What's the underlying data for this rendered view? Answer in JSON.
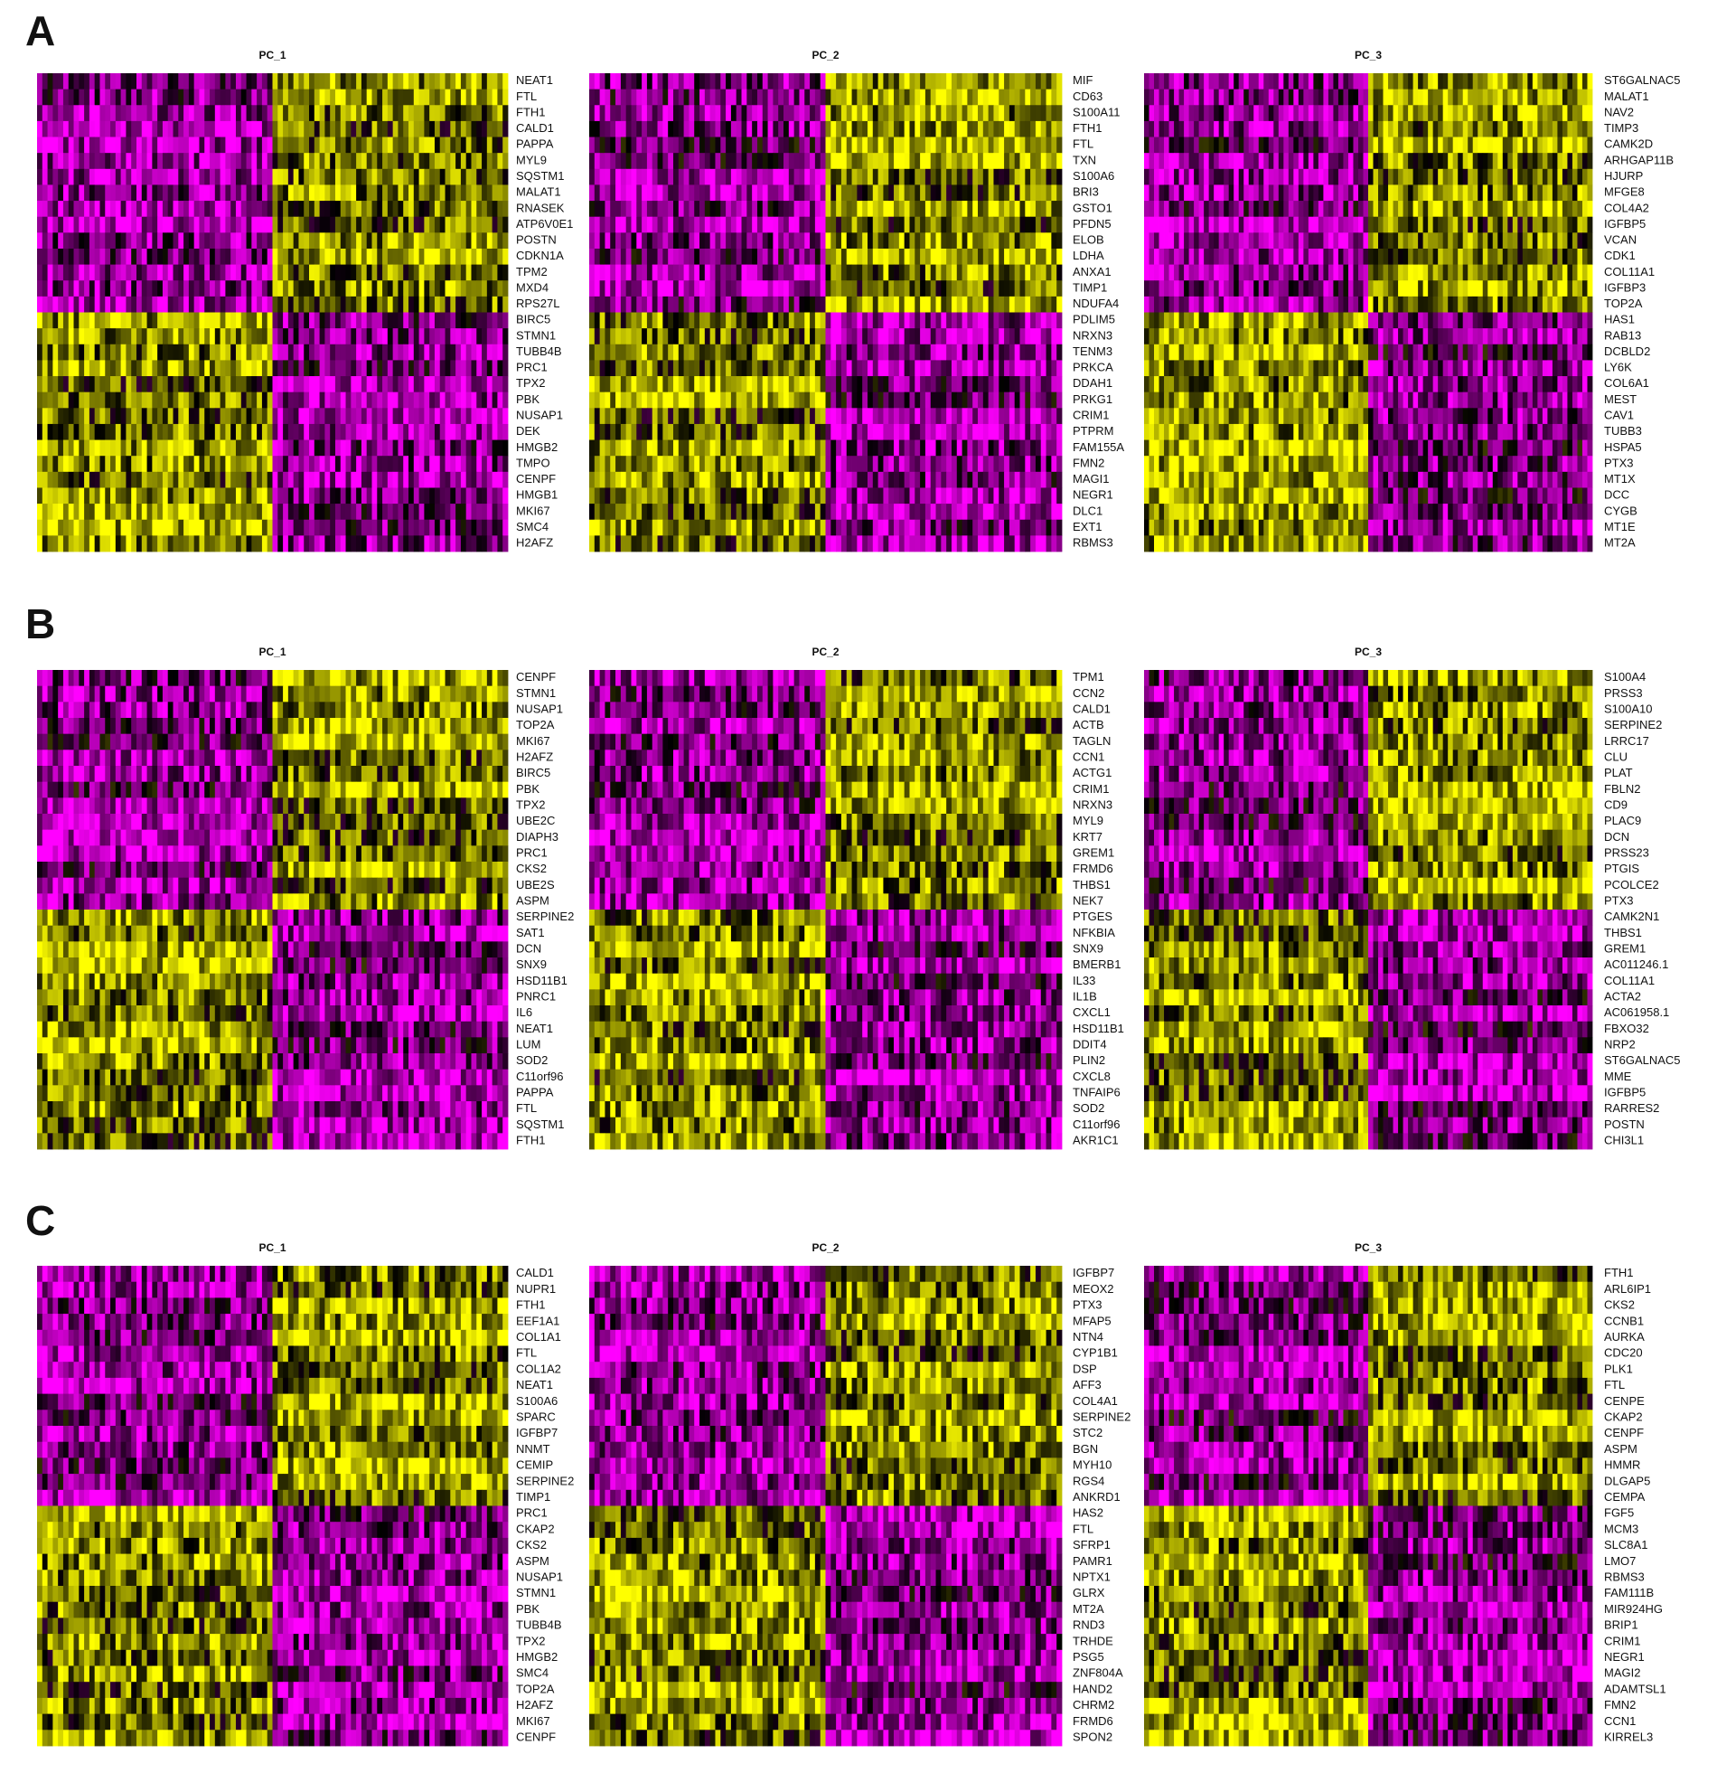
{
  "panels": [
    {
      "letter": "A",
      "heatmaps": [
        {
          "title": "PC_1",
          "genes": [
            "NEAT1",
            "FTL",
            "FTH1",
            "CALD1",
            "PAPPA",
            "MYL9",
            "SQSTM1",
            "MALAT1",
            "RNASEK",
            "ATP6V0E1",
            "POSTN",
            "CDKN1A",
            "TPM2",
            "MXD4",
            "RPS27L",
            "BIRC5",
            "STMN1",
            "TUBB4B",
            "PRC1",
            "TPX2",
            "PBK",
            "NUSAP1",
            "DEK",
            "HMGB2",
            "TMPO",
            "CENPF",
            "HMGB1",
            "MKI67",
            "SMC4",
            "H2AFZ"
          ]
        },
        {
          "title": "PC_2",
          "genes": [
            "MIF",
            "CD63",
            "S100A11",
            "FTH1",
            "FTL",
            "TXN",
            "S100A6",
            "BRI3",
            "GSTO1",
            "PFDN5",
            "ELOB",
            "LDHA",
            "ANXA1",
            "TIMP1",
            "NDUFA4",
            "PDLIM5",
            "NRXN3",
            "TENM3",
            "PRKCA",
            "DDAH1",
            "PRKG1",
            "CRIM1",
            "PTPRM",
            "FAM155A",
            "FMN2",
            "MAGI1",
            "NEGR1",
            "DLC1",
            "EXT1",
            "RBMS3"
          ]
        },
        {
          "title": "PC_3",
          "genes": [
            "ST6GALNAC5",
            "MALAT1",
            "NAV2",
            "TIMP3",
            "CAMK2D",
            "ARHGAP11B",
            "HJURP",
            "MFGE8",
            "COL4A2",
            "IGFBP5",
            "VCAN",
            "CDK1",
            "COL11A1",
            "IGFBP3",
            "TOP2A",
            "HAS1",
            "RAB13",
            "DCBLD2",
            "LY6K",
            "COL6A1",
            "MEST",
            "CAV1",
            "TUBB3",
            "HSPA5",
            "PTX3",
            "MT1X",
            "DCC",
            "CYGB",
            "MT1E",
            "MT2A"
          ]
        }
      ]
    },
    {
      "letter": "B",
      "heatmaps": [
        {
          "title": "PC_1",
          "genes": [
            "CENPF",
            "STMN1",
            "NUSAP1",
            "TOP2A",
            "MKI67",
            "H2AFZ",
            "BIRC5",
            "PBK",
            "TPX2",
            "UBE2C",
            "DIAPH3",
            "PRC1",
            "CKS2",
            "UBE2S",
            "ASPM",
            "SERPINE2",
            "SAT1",
            "DCN",
            "SNX9",
            "HSD11B1",
            "PNRC1",
            "IL6",
            "NEAT1",
            "LUM",
            "SOD2",
            "C11orf96",
            "PAPPA",
            "FTL",
            "SQSTM1",
            "FTH1"
          ]
        },
        {
          "title": "PC_2",
          "genes": [
            "TPM1",
            "CCN2",
            "CALD1",
            "ACTB",
            "TAGLN",
            "CCN1",
            "ACTG1",
            "CRIM1",
            "NRXN3",
            "MYL9",
            "KRT7",
            "GREM1",
            "FRMD6",
            "THBS1",
            "NEK7",
            "PTGES",
            "NFKBIA",
            "SNX9",
            "BMERB1",
            "IL33",
            "IL1B",
            "CXCL1",
            "HSD11B1",
            "DDIT4",
            "PLIN2",
            "CXCL8",
            "TNFAIP6",
            "SOD2",
            "C11orf96",
            "AKR1C1"
          ]
        },
        {
          "title": "PC_3",
          "genes": [
            "S100A4",
            "PRSS3",
            "S100A10",
            "SERPINE2",
            "LRRC17",
            "CLU",
            "PLAT",
            "FBLN2",
            "CD9",
            "PLAC9",
            "DCN",
            "PRSS23",
            "PTGIS",
            "PCOLCE2",
            "PTX3",
            "CAMK2N1",
            "THBS1",
            "GREM1",
            "AC011246.1",
            "COL11A1",
            "ACTA2",
            "AC061958.1",
            "FBXO32",
            "NRP2",
            "ST6GALNAC5",
            "MME",
            "IGFBP5",
            "RARRES2",
            "POSTN",
            "CHI3L1"
          ]
        }
      ]
    },
    {
      "letter": "C",
      "heatmaps": [
        {
          "title": "PC_1",
          "genes": [
            "CALD1",
            "NUPR1",
            "FTH1",
            "EEF1A1",
            "COL1A1",
            "FTL",
            "COL1A2",
            "NEAT1",
            "S100A6",
            "SPARC",
            "IGFBP7",
            "NNMT",
            "CEMIP",
            "SERPINE2",
            "TIMP1",
            "PRC1",
            "CKAP2",
            "CKS2",
            "ASPM",
            "NUSAP1",
            "STMN1",
            "PBK",
            "TUBB4B",
            "TPX2",
            "HMGB2",
            "SMC4",
            "TOP2A",
            "H2AFZ",
            "MKI67",
            "CENPF"
          ]
        },
        {
          "title": "PC_2",
          "genes": [
            "IGFBP7",
            "MEOX2",
            "PTX3",
            "MFAP5",
            "NTN4",
            "CYP1B1",
            "DSP",
            "AFF3",
            "COL4A1",
            "SERPINE2",
            "STC2",
            "BGN",
            "MYH10",
            "RGS4",
            "ANKRD1",
            "HAS2",
            "FTL",
            "SFRP1",
            "PAMR1",
            "NPTX1",
            "GLRX",
            "MT2A",
            "RND3",
            "TRHDE",
            "PSG5",
            "ZNF804A",
            "HAND2",
            "CHRM2",
            "FRMD6",
            "SPON2"
          ]
        },
        {
          "title": "PC_3",
          "genes": [
            "FTH1",
            "ARL6IP1",
            "CKS2",
            "CCNB1",
            "AURKA",
            "CDC20",
            "PLK1",
            "FTL",
            "CENPE",
            "CKAP2",
            "CENPF",
            "ASPM",
            "HMMR",
            "DLGAP5",
            "CEMPA",
            "FGF5",
            "MCM3",
            "SLC8A1",
            "LMO7",
            "RBMS3",
            "FAM111B",
            "MIR924HG",
            "BRIP1",
            "CRIM1",
            "NEGR1",
            "MAGI2",
            "ADAMTSL1",
            "FMN2",
            "CCN1",
            "KIRREL3"
          ]
        }
      ]
    }
  ]
}
